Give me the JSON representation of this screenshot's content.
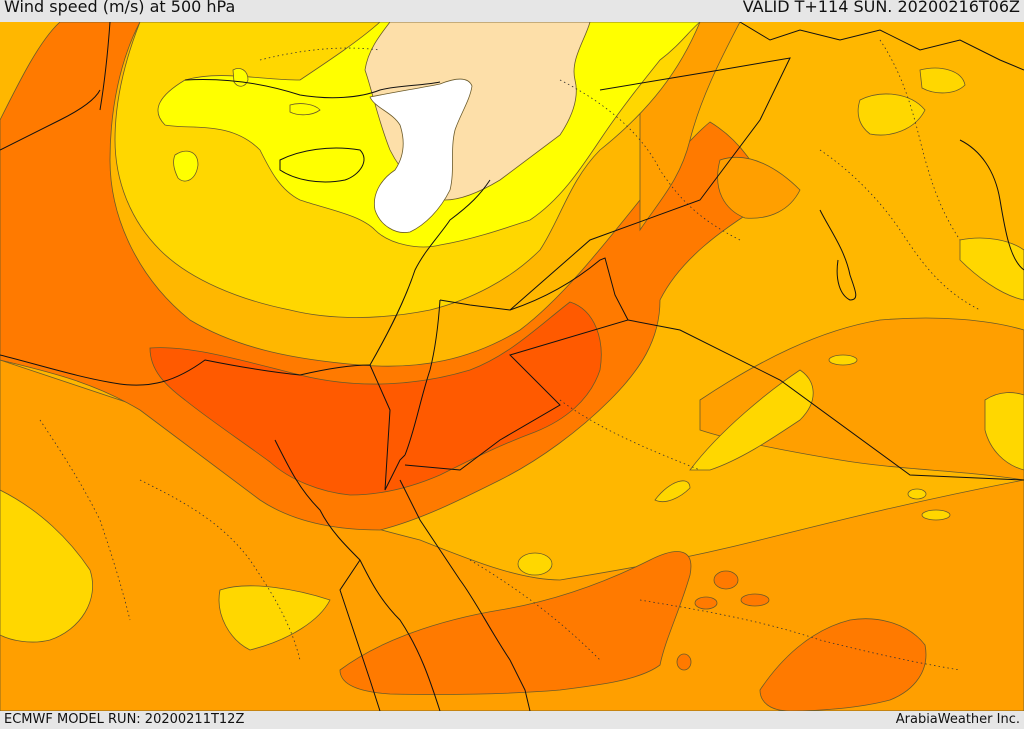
{
  "header": {
    "title": "Wind speed (m/s) at 500 hPa",
    "valid": "VALID T+114 SUN. 20200216T06Z"
  },
  "footer": {
    "model_run": "ECMWF MODEL RUN: 20200211T12Z",
    "credit": "ArabiaWeather Inc."
  },
  "colors": {
    "white": "#ffffff",
    "peach": "#fddfa9",
    "yellow": "#ffff00",
    "gold": "#ffd700",
    "amber": "#ffb700",
    "orange": "#ff9f00",
    "dark_orange": "#ff7a00",
    "red_orange": "#ff5a00"
  }
}
